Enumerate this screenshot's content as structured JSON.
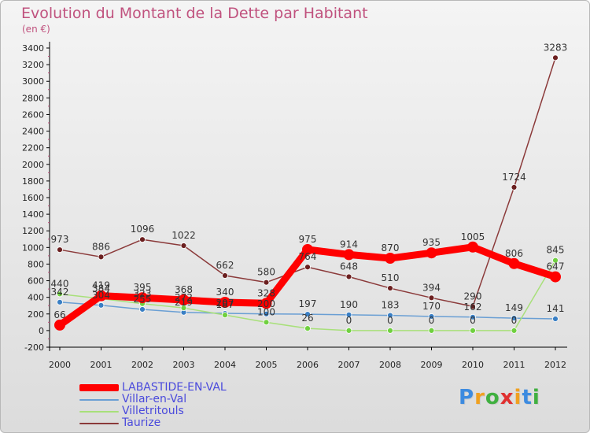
{
  "title": "Evolution du Montant de la Dette par Habitant",
  "subtitle": "(en €)",
  "logo": {
    "letters": [
      {
        "ch": "P",
        "color": "#3d8be0"
      },
      {
        "ch": "r",
        "color": "#f0a020"
      },
      {
        "ch": "o",
        "color": "#40b040"
      },
      {
        "ch": "x",
        "color": "#e03030"
      },
      {
        "ch": "i",
        "color": "#f0a020"
      },
      {
        "ch": "t",
        "color": "#3d8be0"
      },
      {
        "ch": "i",
        "color": "#40b040"
      }
    ]
  },
  "chart_data": {
    "type": "line",
    "categories": [
      "2000",
      "2001",
      "2002",
      "2003",
      "2004",
      "2005",
      "2006",
      "2007",
      "2008",
      "2009",
      "2010",
      "2011",
      "2012"
    ],
    "y_ticks": [
      "-200",
      "0",
      "200",
      "400",
      "600",
      "800",
      "1000",
      "1200",
      "1400",
      "1600",
      "1800",
      "2000",
      "2200",
      "2400",
      "2600",
      "2800",
      "3000",
      "3200",
      "3400"
    ],
    "ylim": [
      -200,
      3400
    ],
    "grid": false,
    "legend_position": "bottom-left",
    "series": [
      {
        "name": "LABASTIDE-EN-VAL",
        "color": "#ff0000",
        "width": 9,
        "values": [
          66,
          419,
          395,
          368,
          340,
          328,
          975,
          914,
          870,
          935,
          1005,
          806,
          647
        ],
        "labels": [
          "66",
          "419",
          "395",
          "368",
          "340",
          "328",
          "975",
          "914",
          "870",
          "935",
          "1005",
          "806",
          "647"
        ]
      },
      {
        "name": "Villar-en-Val",
        "color": "#6a9fd4",
        "point": "#3a7fc4",
        "width": 1.5,
        "values": [
          342,
          304,
          255,
          219,
          207,
          200,
          197,
          190,
          183,
          170,
          162,
          149,
          141
        ],
        "labels": [
          "342",
          "304",
          "255",
          "219",
          "207",
          "200",
          "197",
          "190",
          "183",
          "170",
          "162",
          "149",
          "141"
        ]
      },
      {
        "name": "Villetritouls",
        "color": "#a8e07a",
        "point": "#70d040",
        "width": 1.5,
        "values": [
          440,
          384,
          323,
          272,
          187,
          100,
          26,
          0,
          0,
          0,
          0,
          0,
          845
        ],
        "labels": [
          "440",
          "384",
          "323",
          "272",
          "187",
          "100",
          "26",
          "0",
          "0",
          "0",
          "0",
          "0",
          "845"
        ]
      },
      {
        "name": "Taurize",
        "color": "#8b3a3a",
        "point": "#6b1f1f",
        "width": 1.5,
        "values": [
          973,
          886,
          1096,
          1022,
          662,
          580,
          764,
          648,
          510,
          394,
          290,
          1724,
          3283
        ],
        "labels": [
          "973",
          "886",
          "1096",
          "1022",
          "662",
          "580",
          "764",
          "648",
          "510",
          "394",
          "290",
          "1724",
          "3283"
        ]
      }
    ]
  }
}
